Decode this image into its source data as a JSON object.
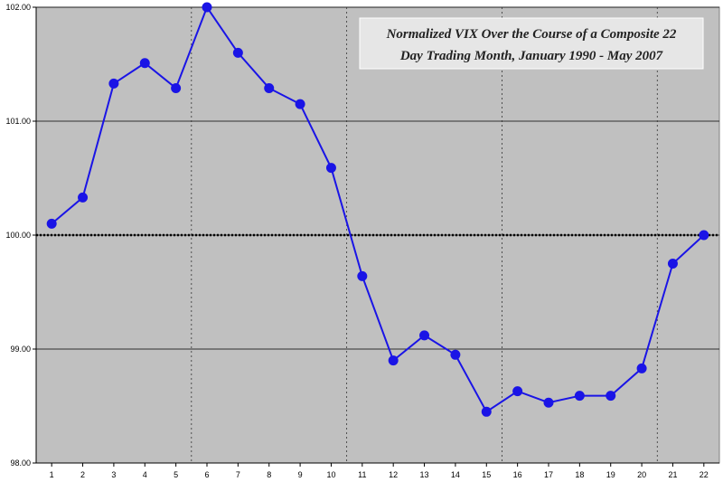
{
  "chart_data": {
    "type": "line",
    "title_lines": [
      "Normalized VIX Over the Course of a Composite 22",
      "Day Trading Month, January 1990 - May 2007"
    ],
    "xlabel": "",
    "ylabel": "",
    "x": [
      1,
      2,
      3,
      4,
      5,
      6,
      7,
      8,
      9,
      10,
      11,
      12,
      13,
      14,
      15,
      16,
      17,
      18,
      19,
      20,
      21,
      22
    ],
    "series": [
      {
        "values": [
          100.1,
          100.33,
          101.33,
          101.51,
          101.29,
          102.0,
          101.6,
          101.29,
          101.15,
          100.59,
          99.64,
          98.9,
          99.12,
          98.95,
          98.45,
          98.63,
          98.53,
          98.59,
          98.59,
          98.83,
          99.75,
          100.0
        ],
        "color": "#1a14e6"
      }
    ],
    "ylim": [
      98.0,
      102.0
    ],
    "y_ticks": [
      "98.00",
      "99.00",
      "100.00",
      "101.00",
      "102.00"
    ],
    "x_ticks": [
      "1",
      "2",
      "3",
      "4",
      "5",
      "6",
      "7",
      "8",
      "9",
      "10",
      "11",
      "12",
      "13",
      "14",
      "15",
      "16",
      "17",
      "18",
      "19",
      "20",
      "21",
      "22"
    ],
    "reference_line": {
      "y": 100.0,
      "style": "dotted",
      "color": "#000000"
    },
    "week_separators_after_x": [
      5.5,
      10.5,
      15.5,
      20.5
    ],
    "grid": true,
    "plot_background": "#c0c0c0",
    "legend": "none"
  }
}
